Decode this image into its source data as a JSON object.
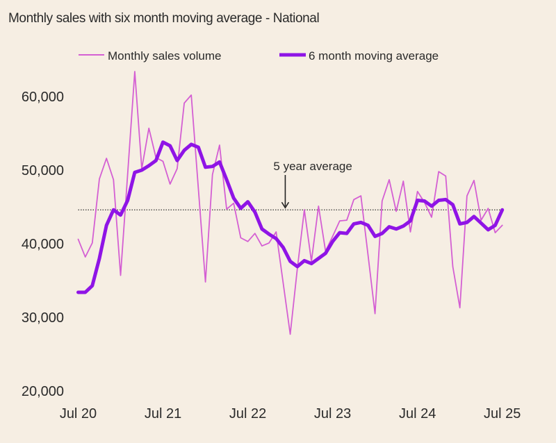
{
  "chart_data": {
    "type": "line",
    "title": "Monthly sales with six month moving average - National",
    "xlabel": "",
    "ylabel": "",
    "ylim": [
      20000,
      65000
    ],
    "yticks": [
      20000,
      30000,
      40000,
      50000,
      60000
    ],
    "ytick_labels": [
      "20,000",
      "30,000",
      "40,000",
      "50,000",
      "60,000"
    ],
    "x_start": "Jul 2020",
    "x_end": "Jul 2025",
    "xtick_labels": [
      "Jul 20",
      "Jul 21",
      "Jul 22",
      "Jul 23",
      "Jul 24",
      "Jul 25"
    ],
    "grid": false,
    "legend": "top",
    "series": [
      {
        "name": "Monthly sales volume",
        "color": "#d45fd3",
        "values": [
          40600,
          38200,
          40100,
          48800,
          51600,
          48700,
          35700,
          49500,
          63400,
          50200,
          55700,
          51700,
          51200,
          48100,
          50200,
          59100,
          60200,
          47500,
          34800,
          49400,
          53400,
          44700,
          45500,
          40800,
          40300,
          41400,
          39700,
          40100,
          41600,
          34700,
          27700,
          36600,
          44600,
          37600,
          45100,
          39000,
          41000,
          43100,
          43200,
          46000,
          46500,
          38500,
          30500,
          45800,
          48700,
          44400,
          48500,
          41600,
          47100,
          45600,
          43600,
          49800,
          49200,
          36900,
          31300,
          46500,
          48600,
          43200,
          44800,
          41500,
          42500
        ]
      },
      {
        "name": "6 month moving average",
        "color": "#8f14e6",
        "values": [
          33400,
          33400,
          34300,
          38000,
          42500,
          44600,
          43900,
          45900,
          49700,
          50000,
          50600,
          51300,
          53800,
          53300,
          51300,
          52700,
          53500,
          53100,
          50400,
          50500,
          51100,
          48700,
          46200,
          44800,
          45700,
          44300,
          42000,
          41300,
          40700,
          39500,
          37600,
          36900,
          37700,
          37300,
          38000,
          38700,
          40300,
          41500,
          41400,
          42700,
          42900,
          42500,
          41000,
          41400,
          42300,
          42000,
          42400,
          43100,
          45900,
          45800,
          45100,
          45900,
          46000,
          45300,
          42700,
          42900,
          43700,
          42800,
          41900,
          42500,
          44600
        ]
      }
    ],
    "reference_line": {
      "label": "5 year average",
      "value": 44600,
      "style": "dotted",
      "color": "#333333"
    },
    "annotation_month_index": 29
  }
}
